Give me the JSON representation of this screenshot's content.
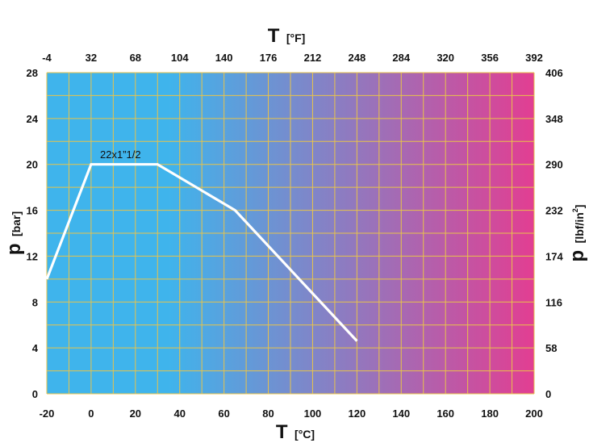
{
  "chart_data": {
    "type": "line",
    "x_axis_bottom": {
      "symbol": "T",
      "unit": "[°C]",
      "range": [
        -20,
        200
      ],
      "ticks": [
        "-20",
        "0",
        "20",
        "40",
        "60",
        "80",
        "100",
        "120",
        "140",
        "160",
        "180",
        "200"
      ]
    },
    "x_axis_top": {
      "symbol": "T",
      "unit": "[°F]",
      "ticks": [
        "-4",
        "32",
        "68",
        "104",
        "140",
        "176",
        "212",
        "248",
        "284",
        "320",
        "356",
        "392"
      ]
    },
    "y_axis_left": {
      "symbol": "p",
      "unit": "[bar]",
      "range": [
        0,
        28
      ],
      "ticks": [
        "0",
        "4",
        "8",
        "12",
        "16",
        "20",
        "24",
        "28"
      ]
    },
    "y_axis_right": {
      "symbol": "p",
      "unit_base": "[lbf/in",
      "unit_sup": "2",
      "unit_close": "]",
      "ticks": [
        "0",
        "58",
        "116",
        "174",
        "232",
        "290",
        "348",
        "406"
      ]
    },
    "series": [
      {
        "name": "22x1”1/2",
        "color": "#ffffff",
        "x": [
          -20,
          0,
          30,
          65,
          120
        ],
        "y": [
          10,
          20,
          20,
          16,
          4.6
        ]
      }
    ],
    "grid": true,
    "grid_color": "#e8c34a",
    "background_gradient": [
      "#3fb4ec",
      "#e23e92"
    ]
  }
}
